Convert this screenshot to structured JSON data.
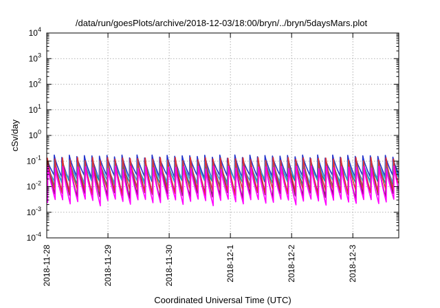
{
  "chart_data": {
    "type": "line",
    "title": "/data/run/goesPlots/archive/2018-12-03/18:00/bryn/../bryn/5daysMars.plot",
    "xlabel": "Coordinated Universal Time (UTC)",
    "ylabel": "cSv/day",
    "yscale": "log",
    "ylim": [
      0.0001,
      10000
    ],
    "xlim": [
      "2018-11-28",
      "2018-12-03 18:00"
    ],
    "grid": true,
    "legend": "none",
    "y_ticks": [
      {
        "base": "10",
        "exp": "-4"
      },
      {
        "base": "10",
        "exp": "-3"
      },
      {
        "base": "10",
        "exp": "-2"
      },
      {
        "base": "10",
        "exp": "-1"
      },
      {
        "base": "10",
        "exp": "0"
      },
      {
        "base": "10",
        "exp": "1"
      },
      {
        "base": "10",
        "exp": "2"
      },
      {
        "base": "10",
        "exp": "3"
      },
      {
        "base": "10",
        "exp": "4"
      }
    ],
    "x_ticks": [
      "2018-11-28",
      "2018-11-29",
      "2018-11-30",
      "2018-12-1",
      "2018-12-2",
      "2018-12-3"
    ],
    "period_hours": 2.95,
    "series": [
      {
        "color": "#2233cc",
        "peak": 0.15,
        "trough": 0.022
      },
      {
        "color": "#8a1a6a",
        "peak": 0.11,
        "trough": 0.0045
      },
      {
        "color": "#009999",
        "peak": 0.07,
        "trough": 0.012
      },
      {
        "color": "#3a9ad9",
        "peak": 0.09,
        "trough": 0.016
      },
      {
        "color": "#dd3333",
        "peak": 0.12,
        "trough": 0.006
      },
      {
        "color": "#ff00ff",
        "peak": 0.055,
        "trough": 0.0025
      }
    ]
  }
}
